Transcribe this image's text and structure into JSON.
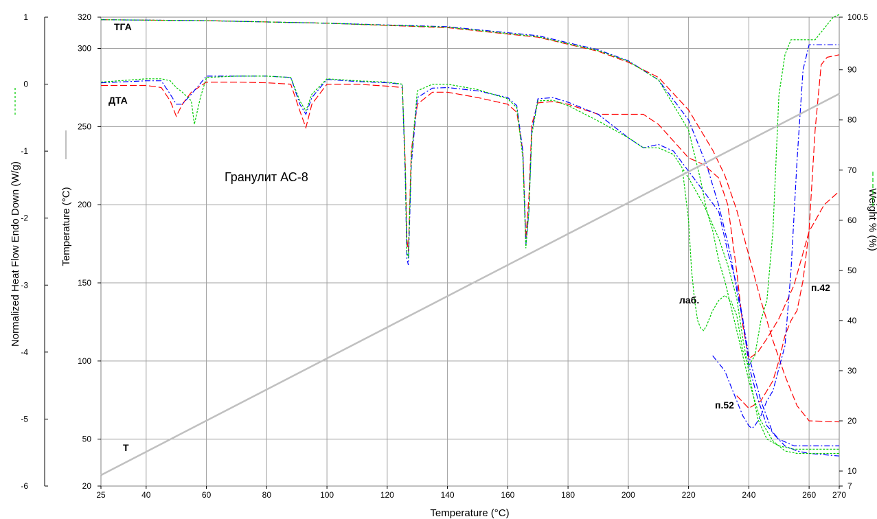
{
  "chart_data": {
    "type": "line",
    "title": "Гранулит АС-8",
    "xlabel": "Temperature (°C)",
    "ylabels": {
      "heat_flow": "Normalized Heat Flow Endo Down (W/g)",
      "temperature": "Temperature (°C)",
      "weight": "Weight % (%)"
    },
    "axes": {
      "x": {
        "min": 25,
        "max": 270,
        "ticks": [
          25,
          40,
          60,
          80,
          100,
          120,
          140,
          160,
          180,
          200,
          220,
          240,
          260,
          270
        ]
      },
      "heat_flow": {
        "min": -6,
        "max": 1,
        "ticks": [
          1,
          0,
          -1,
          -2,
          -3,
          -4,
          -5,
          -6
        ]
      },
      "temperature": {
        "min": 20,
        "max": 320,
        "ticks": [
          320,
          300,
          250,
          200,
          150,
          100,
          50,
          20
        ]
      },
      "weight": {
        "min": 7,
        "max": 100.5,
        "ticks": [
          100.5,
          90,
          80,
          70,
          60,
          50,
          40,
          30,
          20,
          10,
          7
        ]
      }
    },
    "grid": true,
    "annotations": {
      "tga": "ТГА",
      "dta": "ДТА",
      "t": "T",
      "lab": "лаб.",
      "p52": "п.52",
      "p42": "п.42"
    },
    "series": [
      {
        "color": "#ff0000",
        "tga": {
          "x": [
            25,
            60,
            100,
            140,
            170,
            190,
            200,
            210,
            220,
            228,
            232,
            236,
            240,
            244,
            248,
            252,
            256,
            260,
            270
          ],
          "y": [
            100,
            99.8,
            99.3,
            98.4,
            96.5,
            93.7,
            91.5,
            88.5,
            82,
            74,
            69,
            62,
            53,
            44,
            36,
            29,
            23,
            20,
            19.8
          ]
        },
        "tga2": {
          "x": [
            236,
            240,
            244,
            248,
            250,
            252,
            254,
            256,
            258,
            260,
            262,
            264,
            266,
            270
          ],
          "y": [
            25,
            22.5,
            24,
            28,
            32,
            37,
            40,
            42,
            48,
            58,
            78,
            91,
            92.5,
            93
          ]
        },
        "dta": {
          "x": [
            25,
            40,
            45,
            48,
            50,
            52,
            55,
            60,
            70,
            80,
            88,
            91,
            93,
            95,
            100,
            110,
            120,
            125,
            126,
            126.5,
            127,
            128,
            130,
            135,
            140,
            150,
            160,
            163,
            165,
            166,
            167,
            168,
            170,
            175,
            180,
            190,
            200,
            205,
            210,
            215,
            220,
            225,
            230,
            233,
            236,
            238,
            240,
            243,
            246,
            250,
            255,
            260,
            265,
            270
          ],
          "y": [
            -0.02,
            -0.02,
            -0.05,
            -0.25,
            -0.48,
            -0.3,
            -0.12,
            0.03,
            0.03,
            0.02,
            0.0,
            -0.4,
            -0.65,
            -0.3,
            0.0,
            0.0,
            -0.03,
            -0.05,
            -1.2,
            -2.3,
            -2.5,
            -1.0,
            -0.3,
            -0.12,
            -0.12,
            -0.2,
            -0.3,
            -0.42,
            -1.0,
            -2.3,
            -1.7,
            -0.6,
            -0.28,
            -0.26,
            -0.3,
            -0.45,
            -0.45,
            -0.45,
            -0.6,
            -0.85,
            -1.1,
            -1.2,
            -1.4,
            -1.8,
            -2.8,
            -3.6,
            -4.1,
            -4.0,
            -3.8,
            -3.5,
            -3.0,
            -2.2,
            -1.8,
            -1.6
          ]
        }
      },
      {
        "color": "#0000ff",
        "tga": {
          "x": [
            25,
            60,
            100,
            140,
            170,
            190,
            200,
            210,
            220,
            226,
            230,
            234,
            236,
            238,
            240,
            244,
            248,
            252,
            256,
            260,
            270
          ],
          "y": [
            100,
            99.8,
            99.3,
            98.6,
            96.8,
            94,
            91.8,
            88,
            80,
            71,
            63,
            53,
            46,
            40,
            33,
            24,
            17.5,
            15,
            14,
            13.5,
            13
          ]
        },
        "tga2": {
          "x": [
            228,
            232,
            234,
            236,
            238,
            240,
            241,
            242,
            244,
            246,
            248,
            252,
            254,
            256,
            258,
            260,
            264,
            270
          ],
          "y": [
            33,
            30,
            27,
            24,
            21,
            19,
            18.5,
            19,
            21,
            24,
            26,
            35,
            50,
            72,
            90,
            95,
            95,
            95
          ]
        },
        "dta": {
          "x": [
            25,
            40,
            45,
            48,
            50,
            52,
            55,
            60,
            70,
            80,
            88,
            91,
            93,
            95,
            100,
            110,
            120,
            125,
            126,
            126.5,
            127,
            128,
            130,
            135,
            140,
            150,
            160,
            163,
            165,
            166,
            167,
            168,
            170,
            175,
            180,
            190,
            200,
            205,
            210,
            215,
            220,
            225,
            230,
            233,
            236,
            238,
            240,
            243,
            246,
            250,
            255,
            260,
            265,
            270
          ],
          "y": [
            0.02,
            0.05,
            0.05,
            -0.15,
            -0.3,
            -0.3,
            -0.15,
            0.12,
            0.12,
            0.12,
            0.1,
            -0.3,
            -0.45,
            -0.2,
            0.07,
            0.04,
            0.02,
            0.0,
            -1.4,
            -2.6,
            -2.7,
            -1.2,
            -0.2,
            -0.06,
            -0.05,
            -0.1,
            -0.2,
            -0.32,
            -1.0,
            -2.4,
            -1.9,
            -0.7,
            -0.22,
            -0.2,
            -0.27,
            -0.45,
            -0.8,
            -0.95,
            -0.9,
            -1.0,
            -1.3,
            -1.6,
            -1.9,
            -2.5,
            -3.0,
            -3.5,
            -4.2,
            -4.7,
            -5.1,
            -5.3,
            -5.4,
            -5.4,
            -5.4,
            -5.4
          ]
        }
      },
      {
        "color": "#00cc00",
        "tga": {
          "x": [
            25,
            60,
            100,
            140,
            170,
            190,
            200,
            210,
            220,
            224,
            226,
            228,
            230,
            232,
            234,
            236,
            238,
            240,
            242,
            244,
            248,
            252,
            256,
            260,
            270
          ],
          "y": [
            100,
            99.8,
            99.3,
            98.5,
            96.6,
            93.8,
            91.7,
            88,
            78,
            68,
            62,
            58,
            52,
            48,
            43,
            38,
            33,
            28,
            24,
            20,
            16,
            14,
            13.5,
            13.5,
            13.5
          ]
        },
        "tga2": {
          "x": [
            218,
            220,
            221,
            222,
            223,
            224,
            225,
            226,
            228,
            230,
            232,
            234,
            236,
            238,
            240,
            242,
            244,
            246,
            248,
            250,
            252,
            254,
            256,
            258,
            260,
            262,
            266,
            268,
            270
          ],
          "y": [
            70,
            60,
            50,
            44,
            40,
            38.5,
            38,
            39,
            42,
            44,
            45,
            44,
            41,
            34,
            31,
            33,
            40,
            44,
            58,
            85,
            93,
            96,
            96,
            96,
            96,
            96,
            99,
            100.5,
            101
          ]
        },
        "dta": {
          "x": [
            25,
            40,
            45,
            48,
            50,
            52,
            55,
            56,
            58,
            60,
            70,
            80,
            88,
            91,
            93,
            95,
            100,
            110,
            120,
            125,
            126,
            126.5,
            127,
            128,
            130,
            135,
            140,
            150,
            160,
            163,
            165,
            166,
            167,
            168,
            170,
            175,
            180,
            190,
            200,
            205,
            210,
            215,
            220,
            225,
            230,
            233,
            236,
            238,
            240,
            243,
            246,
            250,
            255,
            260,
            265,
            270
          ],
          "y": [
            0.03,
            0.08,
            0.08,
            0.05,
            -0.05,
            -0.12,
            -0.25,
            -0.6,
            -0.2,
            0.1,
            0.12,
            0.12,
            0.1,
            -0.25,
            -0.4,
            -0.15,
            0.08,
            0.05,
            0.03,
            0.0,
            -1.3,
            -2.5,
            -2.6,
            -1.1,
            -0.1,
            0.0,
            0.0,
            -0.08,
            -0.22,
            -0.35,
            -1.1,
            -2.45,
            -1.9,
            -0.75,
            -0.25,
            -0.24,
            -0.32,
            -0.55,
            -0.8,
            -0.95,
            -0.95,
            -1.05,
            -1.4,
            -1.8,
            -2.3,
            -2.7,
            -3.2,
            -3.8,
            -4.3,
            -5.0,
            -5.3,
            -5.4,
            -5.45,
            -5.45,
            -5.45,
            -5.45
          ]
        }
      },
      {
        "color": "#c0c0c0",
        "name": "T",
        "temperature": {
          "x": [
            25,
            270
          ],
          "y": [
            27,
            271
          ]
        }
      }
    ]
  }
}
